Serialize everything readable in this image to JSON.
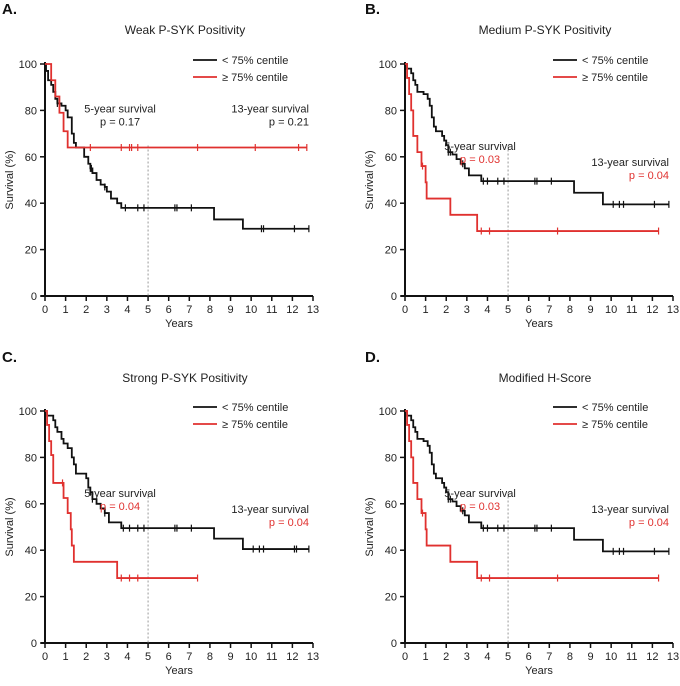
{
  "colors": {
    "low": "#111111",
    "high": "#e0312f",
    "refline": "#999999"
  },
  "chart_data": [
    {
      "type": "line",
      "panel": "A.",
      "title": "Weak P-SYK Positivity",
      "xlabel": "Years",
      "ylabel": "Survival (%)",
      "xlim": [
        0,
        13
      ],
      "ylim": [
        0,
        100
      ],
      "xticks": [
        "0",
        "1",
        "2",
        "3",
        "4",
        "5",
        "6",
        "7",
        "8",
        "9",
        "10",
        "11",
        "12",
        "13"
      ],
      "yticks": [
        "0",
        "20",
        "40",
        "60",
        "80",
        "100"
      ],
      "legend": {
        "position": "top-right",
        "entries": [
          "< 75% centile",
          "≥ 75% centile"
        ]
      },
      "refline_x": 5,
      "annotations": [
        {
          "label": "5-year survival",
          "p": "p = 0.17",
          "p_red": false
        },
        {
          "label": "13-year survival",
          "p": "p = 0.21",
          "p_red": false
        }
      ],
      "series": [
        {
          "name": "< 75% centile",
          "color": "low",
          "steps": [
            [
              0,
              100
            ],
            [
              0.05,
              97
            ],
            [
              0.15,
              93
            ],
            [
              0.3,
              91
            ],
            [
              0.4,
              88
            ],
            [
              0.5,
              85
            ],
            [
              0.6,
              83
            ],
            [
              0.8,
              82
            ],
            [
              1.0,
              80
            ],
            [
              1.1,
              77
            ],
            [
              1.3,
              70
            ],
            [
              1.4,
              66
            ],
            [
              1.5,
              64
            ],
            [
              1.9,
              60
            ],
            [
              2.1,
              57
            ],
            [
              2.2,
              55
            ],
            [
              2.3,
              53
            ],
            [
              2.5,
              50
            ],
            [
              2.7,
              48
            ],
            [
              2.9,
              47
            ],
            [
              3.0,
              45
            ],
            [
              3.2,
              42
            ],
            [
              3.5,
              40
            ],
            [
              3.7,
              38
            ],
            [
              8.2,
              33
            ],
            [
              9.6,
              29
            ]
          ],
          "end": 12.8,
          "censored": [
            0.6,
            2.2,
            2.25,
            2.9,
            3.9,
            4.5,
            4.8,
            6.3,
            6.4,
            7.1,
            10.5,
            10.6,
            12.1,
            12.8
          ]
        },
        {
          "name": "≥ 75% centile",
          "color": "high",
          "steps": [
            [
              0,
              100
            ],
            [
              0.3,
              93
            ],
            [
              0.5,
              86
            ],
            [
              0.7,
              79
            ],
            [
              0.9,
              71
            ],
            [
              1.1,
              64
            ]
          ],
          "end": 12.7,
          "censored": [
            2.2,
            3.7,
            4.1,
            4.2,
            4.5,
            7.4,
            10.2,
            12.3,
            12.7
          ]
        }
      ]
    },
    {
      "type": "line",
      "panel": "B.",
      "title": "Medium P-SYK Positivity",
      "xlabel": "Years",
      "ylabel": "Survival (%)",
      "xlim": [
        0,
        13
      ],
      "ylim": [
        0,
        100
      ],
      "xticks": [
        "0",
        "1",
        "2",
        "3",
        "4",
        "5",
        "6",
        "7",
        "8",
        "9",
        "10",
        "11",
        "12",
        "13"
      ],
      "yticks": [
        "0",
        "20",
        "40",
        "60",
        "80",
        "100"
      ],
      "legend": {
        "position": "top-right",
        "entries": [
          "< 75% centile",
          "≥ 75% centile"
        ]
      },
      "refline_x": 5,
      "annotations": [
        {
          "label": "5-year survival",
          "p": "p = 0.03",
          "p_red": true
        },
        {
          "label": "13-year survival",
          "p": "p = 0.04",
          "p_red": true
        }
      ],
      "series": [
        {
          "name": "< 75% centile",
          "color": "low",
          "steps": [
            [
              0,
              100
            ],
            [
              0.1,
              98
            ],
            [
              0.3,
              96
            ],
            [
              0.4,
              93
            ],
            [
              0.5,
              91
            ],
            [
              0.6,
              88
            ],
            [
              0.9,
              87
            ],
            [
              1.1,
              85
            ],
            [
              1.2,
              82
            ],
            [
              1.3,
              77
            ],
            [
              1.4,
              73
            ],
            [
              1.5,
              71
            ],
            [
              1.8,
              69
            ],
            [
              1.9,
              67
            ],
            [
              2.0,
              65
            ],
            [
              2.1,
              62
            ],
            [
              2.3,
              61
            ],
            [
              2.5,
              59
            ],
            [
              2.7,
              57
            ],
            [
              2.9,
              55
            ],
            [
              3.1,
              52
            ],
            [
              3.7,
              49.5
            ],
            [
              8.2,
              44.5
            ],
            [
              9.6,
              39.5
            ]
          ],
          "end": 12.8,
          "censored": [
            2.1,
            2.2,
            2.8,
            3.8,
            4.0,
            4.5,
            4.8,
            6.3,
            6.4,
            7.1,
            10.1,
            10.4,
            10.6,
            12.1,
            12.8
          ]
        },
        {
          "name": "≥ 75% centile",
          "color": "high",
          "steps": [
            [
              0,
              100
            ],
            [
              0.1,
              94
            ],
            [
              0.2,
              87
            ],
            [
              0.3,
              80
            ],
            [
              0.4,
              69
            ],
            [
              0.6,
              62
            ],
            [
              0.8,
              56
            ],
            [
              1.0,
              49
            ],
            [
              1.05,
              42
            ],
            [
              2.2,
              35
            ],
            [
              3.5,
              28
            ]
          ],
          "end": 12.3,
          "censored": [
            0.85,
            3.7,
            4.1,
            7.4,
            12.3
          ]
        }
      ]
    },
    {
      "type": "line",
      "panel": "C.",
      "title": "Strong P-SYK Positivity",
      "xlabel": "Years",
      "ylabel": "Survival (%)",
      "xlim": [
        0,
        13
      ],
      "ylim": [
        0,
        100
      ],
      "xticks": [
        "0",
        "1",
        "2",
        "3",
        "4",
        "5",
        "6",
        "7",
        "8",
        "9",
        "10",
        "11",
        "12",
        "13"
      ],
      "yticks": [
        "0",
        "20",
        "40",
        "60",
        "80",
        "100"
      ],
      "legend": {
        "position": "top-right",
        "entries": [
          "< 75% centile",
          "≥ 75% centile"
        ]
      },
      "refline_x": 5,
      "annotations": [
        {
          "label": "5-year survival",
          "p": "p = 0.04",
          "p_red": true
        },
        {
          "label": "13-year survival",
          "p": "p = 0.04",
          "p_red": true
        }
      ],
      "series": [
        {
          "name": "< 75% centile",
          "color": "low",
          "steps": [
            [
              0,
              100
            ],
            [
              0.1,
              98
            ],
            [
              0.4,
              96
            ],
            [
              0.5,
              93
            ],
            [
              0.6,
              91
            ],
            [
              0.8,
              88
            ],
            [
              0.9,
              86
            ],
            [
              1.1,
              84
            ],
            [
              1.3,
              80
            ],
            [
              1.4,
              77
            ],
            [
              1.5,
              73
            ],
            [
              2.0,
              71
            ],
            [
              2.1,
              67
            ],
            [
              2.2,
              65
            ],
            [
              2.3,
              62
            ],
            [
              2.5,
              60
            ],
            [
              2.7,
              58
            ],
            [
              2.9,
              56
            ],
            [
              3.1,
              52
            ],
            [
              3.7,
              49.5
            ],
            [
              8.2,
              45
            ],
            [
              9.6,
              40.5
            ]
          ],
          "end": 12.8,
          "censored": [
            2.2,
            2.3,
            2.9,
            3.8,
            4.1,
            4.5,
            4.8,
            6.3,
            6.4,
            7.1,
            10.1,
            10.4,
            10.6,
            12.1,
            12.2,
            12.8
          ]
        },
        {
          "name": "≥ 75% centile",
          "color": "high",
          "steps": [
            [
              0,
              100
            ],
            [
              0.1,
              94
            ],
            [
              0.2,
              87
            ],
            [
              0.3,
              81
            ],
            [
              0.4,
              69
            ],
            [
              0.9,
              62.5
            ],
            [
              1.1,
              56
            ],
            [
              1.25,
              49
            ],
            [
              1.3,
              42
            ],
            [
              1.4,
              35
            ],
            [
              3.5,
              28
            ]
          ],
          "end": 7.4,
          "censored": [
            0.85,
            3.7,
            4.1,
            4.5,
            7.4
          ]
        }
      ]
    },
    {
      "type": "line",
      "panel": "D.",
      "title": "Modified H-Score",
      "xlabel": "Years",
      "ylabel": "Survival (%)",
      "xlim": [
        0,
        13
      ],
      "ylim": [
        0,
        100
      ],
      "xticks": [
        "0",
        "1",
        "2",
        "3",
        "4",
        "5",
        "6",
        "7",
        "8",
        "9",
        "10",
        "11",
        "12",
        "13"
      ],
      "yticks": [
        "0",
        "20",
        "40",
        "60",
        "80",
        "100"
      ],
      "legend": {
        "position": "top-right",
        "entries": [
          "< 75% centile",
          "≥ 75% centile"
        ]
      },
      "refline_x": 5,
      "annotations": [
        {
          "label": "5-year survival",
          "p": "p = 0.03",
          "p_red": true
        },
        {
          "label": "13-year survival",
          "p": "p = 0.04",
          "p_red": true
        }
      ],
      "series": [
        {
          "name": "< 75% centile",
          "color": "low",
          "steps": [
            [
              0,
              100
            ],
            [
              0.1,
              98
            ],
            [
              0.3,
              96
            ],
            [
              0.4,
              93
            ],
            [
              0.5,
              91
            ],
            [
              0.6,
              88
            ],
            [
              0.9,
              87
            ],
            [
              1.1,
              85
            ],
            [
              1.2,
              82
            ],
            [
              1.3,
              77
            ],
            [
              1.4,
              73
            ],
            [
              1.5,
              71
            ],
            [
              1.8,
              69
            ],
            [
              1.9,
              67
            ],
            [
              2.0,
              65
            ],
            [
              2.1,
              62
            ],
            [
              2.3,
              61
            ],
            [
              2.5,
              59
            ],
            [
              2.7,
              57
            ],
            [
              2.9,
              55
            ],
            [
              3.1,
              52
            ],
            [
              3.7,
              49.5
            ],
            [
              8.2,
              44.5
            ],
            [
              9.6,
              39.5
            ]
          ],
          "end": 12.8,
          "censored": [
            2.1,
            2.2,
            2.8,
            3.8,
            4.0,
            4.5,
            4.8,
            6.3,
            6.4,
            7.1,
            10.1,
            10.4,
            10.6,
            12.1,
            12.8
          ]
        },
        {
          "name": "≥ 75% centile",
          "color": "high",
          "steps": [
            [
              0,
              100
            ],
            [
              0.1,
              94
            ],
            [
              0.2,
              87
            ],
            [
              0.3,
              80
            ],
            [
              0.4,
              69
            ],
            [
              0.6,
              62
            ],
            [
              0.8,
              56
            ],
            [
              1.0,
              49
            ],
            [
              1.05,
              42
            ],
            [
              2.2,
              35
            ],
            [
              3.5,
              28
            ]
          ],
          "end": 12.3,
          "censored": [
            0.85,
            3.7,
            4.1,
            7.4,
            12.3
          ]
        }
      ]
    }
  ]
}
